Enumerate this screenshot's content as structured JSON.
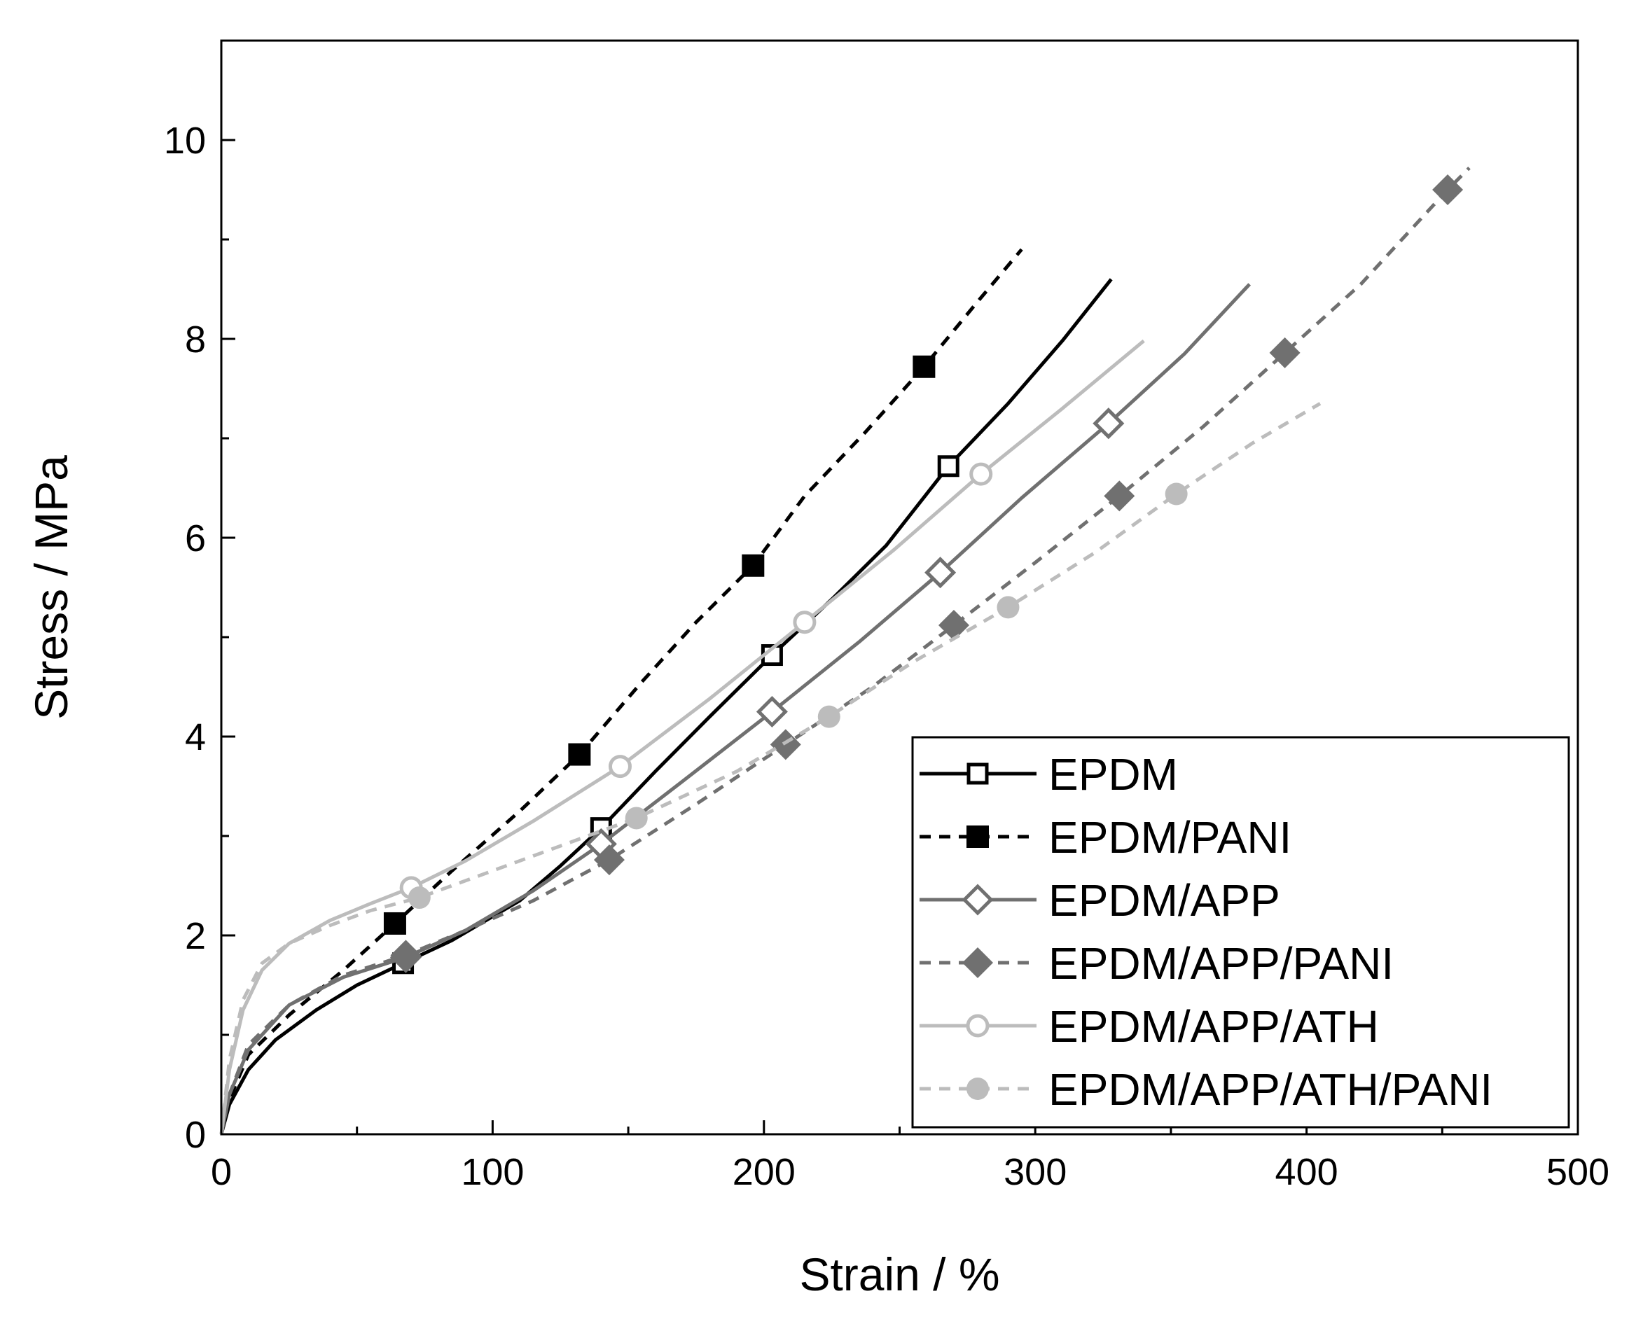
{
  "chart_data": {
    "type": "line",
    "title": "",
    "xlabel": "Strain / %",
    "ylabel": "Stress / MPa",
    "xlim": [
      0,
      500
    ],
    "ylim": [
      0,
      11
    ],
    "xticks": [
      0,
      100,
      200,
      300,
      400,
      500
    ],
    "yticks": [
      0,
      2,
      4,
      6,
      8,
      10
    ],
    "grid": false,
    "legend_position": "bottom-right",
    "series": [
      {
        "name": "EPDM",
        "color": "#000000",
        "dash": "solid",
        "marker": "square-open",
        "curve": [
          [
            0,
            0
          ],
          [
            3,
            0.3
          ],
          [
            10,
            0.65
          ],
          [
            20,
            0.95
          ],
          [
            35,
            1.25
          ],
          [
            50,
            1.5
          ],
          [
            67,
            1.72
          ],
          [
            85,
            1.95
          ],
          [
            110,
            2.35
          ],
          [
            125,
            2.7
          ],
          [
            140,
            3.08
          ],
          [
            160,
            3.65
          ],
          [
            180,
            4.2
          ],
          [
            203,
            4.82
          ],
          [
            225,
            5.38
          ],
          [
            245,
            5.92
          ],
          [
            268,
            6.72
          ],
          [
            290,
            7.35
          ],
          [
            310,
            7.98
          ],
          [
            328,
            8.6
          ]
        ],
        "markers": [
          [
            67,
            1.72
          ],
          [
            140,
            3.08
          ],
          [
            203,
            4.82
          ],
          [
            268,
            6.72
          ]
        ]
      },
      {
        "name": "EPDM/PANI",
        "color": "#000000",
        "dash": "dashed",
        "marker": "square-filled",
        "curve": [
          [
            0,
            0
          ],
          [
            3,
            0.35
          ],
          [
            10,
            0.8
          ],
          [
            25,
            1.2
          ],
          [
            45,
            1.65
          ],
          [
            64,
            2.12
          ],
          [
            85,
            2.65
          ],
          [
            110,
            3.25
          ],
          [
            132,
            3.82
          ],
          [
            155,
            4.55
          ],
          [
            175,
            5.15
          ],
          [
            196,
            5.72
          ],
          [
            215,
            6.42
          ],
          [
            237,
            7.05
          ],
          [
            259,
            7.72
          ],
          [
            278,
            8.35
          ],
          [
            295,
            8.9
          ]
        ],
        "markers": [
          [
            64,
            2.12
          ],
          [
            132,
            3.82
          ],
          [
            196,
            5.72
          ],
          [
            259,
            7.72
          ]
        ]
      },
      {
        "name": "EPDM/APP",
        "color": "#707070",
        "dash": "solid",
        "marker": "diamond-open",
        "curve": [
          [
            0,
            0
          ],
          [
            3,
            0.4
          ],
          [
            10,
            0.85
          ],
          [
            25,
            1.3
          ],
          [
            45,
            1.58
          ],
          [
            68,
            1.78
          ],
          [
            90,
            2.05
          ],
          [
            115,
            2.45
          ],
          [
            140,
            2.92
          ],
          [
            170,
            3.55
          ],
          [
            203,
            4.25
          ],
          [
            235,
            4.95
          ],
          [
            265,
            5.65
          ],
          [
            295,
            6.4
          ],
          [
            327,
            7.15
          ],
          [
            355,
            7.85
          ],
          [
            379,
            8.55
          ]
        ],
        "markers": [
          [
            68,
            1.78
          ],
          [
            140,
            2.92
          ],
          [
            203,
            4.25
          ],
          [
            265,
            5.65
          ],
          [
            327,
            7.15
          ]
        ]
      },
      {
        "name": "EPDM/APP/PANI",
        "color": "#707070",
        "dash": "dashed",
        "marker": "diamond-filled",
        "curve": [
          [
            0,
            0
          ],
          [
            3,
            0.4
          ],
          [
            10,
            0.9
          ],
          [
            25,
            1.3
          ],
          [
            45,
            1.6
          ],
          [
            68,
            1.8
          ],
          [
            90,
            2.05
          ],
          [
            115,
            2.35
          ],
          [
            143,
            2.76
          ],
          [
            175,
            3.32
          ],
          [
            208,
            3.92
          ],
          [
            240,
            4.5
          ],
          [
            270,
            5.12
          ],
          [
            300,
            5.75
          ],
          [
            331,
            6.42
          ],
          [
            362,
            7.12
          ],
          [
            392,
            7.86
          ],
          [
            420,
            8.55
          ],
          [
            452,
            9.5
          ],
          [
            460,
            9.72
          ]
        ],
        "markers": [
          [
            68,
            1.8
          ],
          [
            143,
            2.76
          ],
          [
            208,
            3.92
          ],
          [
            270,
            5.12
          ],
          [
            331,
            6.42
          ],
          [
            392,
            7.86
          ],
          [
            452,
            9.5
          ]
        ]
      },
      {
        "name": "EPDM/APP/ATH",
        "color": "#bcbcbc",
        "dash": "solid",
        "marker": "circle-open",
        "curve": [
          [
            0,
            0
          ],
          [
            3,
            0.65
          ],
          [
            8,
            1.25
          ],
          [
            15,
            1.65
          ],
          [
            25,
            1.92
          ],
          [
            40,
            2.15
          ],
          [
            55,
            2.32
          ],
          [
            70,
            2.48
          ],
          [
            90,
            2.75
          ],
          [
            115,
            3.15
          ],
          [
            147,
            3.7
          ],
          [
            180,
            4.38
          ],
          [
            215,
            5.15
          ],
          [
            248,
            5.88
          ],
          [
            280,
            6.64
          ],
          [
            310,
            7.3
          ],
          [
            340,
            7.98
          ]
        ],
        "markers": [
          [
            70,
            2.48
          ],
          [
            147,
            3.7
          ],
          [
            215,
            5.15
          ],
          [
            280,
            6.64
          ]
        ]
      },
      {
        "name": "EPDM/APP/ATH/PANI",
        "color": "#bcbcbc",
        "dash": "dashed",
        "marker": "circle-filled",
        "curve": [
          [
            0,
            0
          ],
          [
            3,
            0.75
          ],
          [
            8,
            1.35
          ],
          [
            15,
            1.72
          ],
          [
            25,
            1.92
          ],
          [
            40,
            2.1
          ],
          [
            55,
            2.25
          ],
          [
            73,
            2.38
          ],
          [
            95,
            2.6
          ],
          [
            125,
            2.9
          ],
          [
            153,
            3.18
          ],
          [
            190,
            3.65
          ],
          [
            224,
            4.2
          ],
          [
            255,
            4.75
          ],
          [
            290,
            5.3
          ],
          [
            322,
            5.85
          ],
          [
            352,
            6.44
          ],
          [
            380,
            6.95
          ],
          [
            405,
            7.35
          ]
        ],
        "markers": [
          [
            73,
            2.38
          ],
          [
            153,
            3.18
          ],
          [
            224,
            4.2
          ],
          [
            290,
            5.3
          ],
          [
            352,
            6.44
          ]
        ]
      }
    ]
  }
}
